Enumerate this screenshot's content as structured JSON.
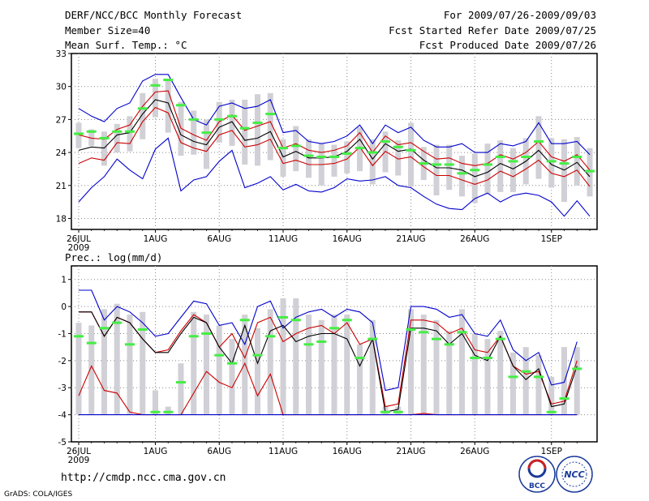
{
  "header": {
    "title": "DERF/NCC/BCC Monthly Forecast",
    "member_size": "Member Size=40",
    "temp_label": "Mean Surf. Temp.: °C",
    "period": "For 2009/07/26-2009/09/03",
    "started": "Fcst Started Refer Date 2009/07/25",
    "produced": "Fcst Produced Date 2009/07/26"
  },
  "footer": {
    "url": "http://cmdp.ncc.cma.gov.cn",
    "grads": "GrADS: COLA/IGES",
    "logo_bcc": "BCC",
    "logo_ncc": "NCC"
  },
  "colors": {
    "blue": "#0000cc",
    "red": "#cc0000",
    "black": "#000000",
    "green": "#44ee44",
    "bar": "#d0d0d6",
    "grid": "#888888"
  },
  "chart_data": [
    {
      "type": "line",
      "title": "Mean Surf. Temp.: °C",
      "xlabel": "",
      "ylabel": "°C",
      "ylim": [
        17,
        33
      ],
      "yticks": [
        "18",
        "21",
        "24",
        "27",
        "30",
        "33"
      ],
      "ytick_values": [
        18,
        21,
        24,
        27,
        30,
        33
      ],
      "xticks": [
        {
          "day": 0,
          "label": "26JUL",
          "sub": "2009"
        },
        {
          "day": 6,
          "label": "1AUG",
          "sub": ""
        },
        {
          "day": 11,
          "label": "6AUG",
          "sub": ""
        },
        {
          "day": 16,
          "label": "11AUG",
          "sub": ""
        },
        {
          "day": 21,
          "label": "16AUG",
          "sub": ""
        },
        {
          "day": 26,
          "label": "21AUG",
          "sub": ""
        },
        {
          "day": 31,
          "label": "26AUG",
          "sub": ""
        },
        {
          "day": 37,
          "label": "1SEP",
          "sub": ""
        }
      ],
      "x_start_day": 0,
      "series": [
        {
          "name": "max",
          "color": "blue",
          "values": [
            28,
            27.3,
            26.8,
            28,
            28.5,
            30.5,
            31.1,
            31.1,
            29,
            27,
            26.5,
            28.2,
            28.5,
            28,
            28.2,
            28.8,
            25.8,
            26,
            25,
            24.8,
            25,
            25.5,
            26.5,
            24.8,
            26.5,
            25.8,
            26.3,
            25.1,
            24.5,
            24.5,
            24.8,
            24,
            24,
            24.8,
            24.6,
            25,
            26.7,
            24.8,
            24.8,
            25,
            23.8
          ]
        },
        {
          "name": "upper",
          "color": "red",
          "values": [
            25.6,
            25.3,
            25.2,
            26.1,
            26.5,
            28.2,
            29.5,
            29.6,
            26.2,
            25.6,
            25.1,
            26.8,
            27.4,
            26,
            26.4,
            26.8,
            24.4,
            24.8,
            24.2,
            24,
            24.2,
            24.6,
            25.8,
            24,
            25.5,
            24.7,
            24.9,
            24.1,
            23.4,
            23.5,
            23,
            22.8,
            23,
            23.8,
            23.4,
            24,
            25,
            23.6,
            23.2,
            23.8,
            22.4
          ]
        },
        {
          "name": "mean",
          "color": "black",
          "values": [
            24.2,
            24.5,
            24.4,
            25.6,
            25.8,
            27.5,
            28.8,
            28.5,
            25.6,
            25,
            24.7,
            26.3,
            26.8,
            25.1,
            25.3,
            25.9,
            23.6,
            24.1,
            23.5,
            23.5,
            23.6,
            24.1,
            25.2,
            23.4,
            24.8,
            24.1,
            24.3,
            23.3,
            22.6,
            22.6,
            22.4,
            21.8,
            22.2,
            23,
            22.5,
            23.2,
            24.2,
            22.9,
            22.4,
            23.1,
            21.8
          ]
        },
        {
          "name": "lower",
          "color": "red",
          "values": [
            23,
            23.5,
            23.3,
            24.9,
            24.8,
            26.8,
            28.1,
            27.6,
            24.9,
            24.4,
            24.1,
            25.6,
            26,
            24.5,
            24.7,
            25.2,
            23,
            23.3,
            22.9,
            22.9,
            23,
            23.4,
            24.5,
            22.8,
            24.1,
            23.4,
            23.6,
            22.7,
            21.9,
            21.9,
            21.5,
            21.1,
            21.5,
            22.3,
            21.8,
            22.5,
            23.3,
            22.1,
            21.8,
            22.4,
            20.9
          ]
        },
        {
          "name": "min",
          "color": "blue",
          "values": [
            19.5,
            20.8,
            21.8,
            23.4,
            22.4,
            21.6,
            24.3,
            25.3,
            20.5,
            21.5,
            21.8,
            23.2,
            24.2,
            20.8,
            21.2,
            21.8,
            20.6,
            21.1,
            20.5,
            20.4,
            20.8,
            21.6,
            21.4,
            21.5,
            21.8,
            21,
            20.8,
            20,
            19.3,
            18.9,
            18.8,
            19.8,
            20.3,
            19.5,
            20.1,
            20.3,
            20.1,
            19.5,
            18.2,
            19.6,
            18.2
          ]
        }
      ],
      "markers": [
        25.7,
        25.9,
        25.3,
        25.9,
        25.9,
        28,
        30.1,
        30.6,
        28.3,
        27,
        25.8,
        27,
        27.3,
        26.2,
        26.7,
        27.5,
        24.4,
        24.6,
        23.7,
        23.6,
        23.6,
        23.9,
        24.4,
        24,
        25,
        24.5,
        24.2,
        23,
        22.9,
        22.9,
        22.1,
        22.4,
        22.9,
        23.6,
        23.2,
        23.6,
        25,
        23.2,
        23,
        23.6,
        22.3
      ],
      "boxes": [
        [
          24.4,
          26.7
        ],
        [
          24.6,
          26.1
        ],
        [
          22.8,
          25.9
        ],
        [
          24,
          26.6
        ],
        [
          24.1,
          27.3
        ],
        [
          25.2,
          29.4
        ],
        [
          27.2,
          30.7
        ],
        [
          25.8,
          30.6
        ],
        [
          23.7,
          28.6
        ],
        [
          23.8,
          27.8
        ],
        [
          22.5,
          27
        ],
        [
          24.9,
          28.6
        ],
        [
          24.6,
          28.8
        ],
        [
          22.9,
          28.8
        ],
        [
          22.8,
          29.3
        ],
        [
          23.3,
          29.4
        ],
        [
          21.8,
          25.2
        ],
        [
          22.3,
          26.4
        ],
        [
          21.7,
          25.2
        ],
        [
          21,
          24.8
        ],
        [
          21.8,
          24.7
        ],
        [
          22.1,
          25
        ],
        [
          22.3,
          26.3
        ],
        [
          21.1,
          25.2
        ],
        [
          22.2,
          25.9
        ],
        [
          21.9,
          25.1
        ],
        [
          20.9,
          26.7
        ],
        [
          21.5,
          24.5
        ],
        [
          20.1,
          24.7
        ],
        [
          20.6,
          24.7
        ],
        [
          20,
          23.7
        ],
        [
          19.4,
          23.9
        ],
        [
          20.2,
          24.8
        ],
        [
          20.4,
          25.1
        ],
        [
          20.4,
          24.4
        ],
        [
          21.1,
          25.3
        ],
        [
          21.6,
          27.3
        ],
        [
          20.8,
          25.3
        ],
        [
          19.5,
          25.2
        ],
        [
          21,
          25.4
        ],
        [
          20,
          24.4
        ]
      ]
    },
    {
      "type": "line",
      "title": "Prec.: log(mm/d)",
      "xlabel": "",
      "ylabel": "log(mm/d)",
      "ylim": [
        -5,
        1.5
      ],
      "yticks": [
        "-5",
        "-4",
        "-3",
        "-2",
        "-1",
        "0",
        "1"
      ],
      "ytick_values": [
        -5,
        -4,
        -3,
        -2,
        -1,
        0,
        1
      ],
      "xticks": [
        {
          "day": 0,
          "label": "26JUL",
          "sub": "2009"
        },
        {
          "day": 6,
          "label": "1AUG",
          "sub": ""
        },
        {
          "day": 11,
          "label": "6AUG",
          "sub": ""
        },
        {
          "day": 16,
          "label": "11AUG",
          "sub": ""
        },
        {
          "day": 21,
          "label": "16AUG",
          "sub": ""
        },
        {
          "day": 26,
          "label": "21AUG",
          "sub": ""
        },
        {
          "day": 31,
          "label": "26AUG",
          "sub": ""
        },
        {
          "day": 37,
          "label": "1SEP",
          "sub": ""
        }
      ],
      "x_start_day": 0,
      "series": [
        {
          "name": "max",
          "color": "blue",
          "values": [
            0.6,
            0.6,
            -0.5,
            0,
            -0.2,
            -0.6,
            -1.1,
            -1,
            -0.4,
            0.2,
            0.1,
            -0.7,
            -0.6,
            -1.4,
            0,
            0.2,
            -0.8,
            -0.4,
            -0.2,
            -0.1,
            -0.4,
            -0.1,
            -0.2,
            -0.6,
            -3.1,
            -3,
            0,
            0,
            -0.1,
            -0.4,
            -0.3,
            -1,
            -1.1,
            -0.5,
            -1.6,
            -2,
            -1.7,
            -2.9,
            -2.8,
            -1.3
          ]
        },
        {
          "name": "upper",
          "color": "red",
          "values": [
            -0.2,
            -0.2,
            -1.1,
            -0.4,
            -0.6,
            -1.2,
            -1.7,
            -1.6,
            -0.9,
            -0.3,
            -0.6,
            -1.5,
            -1,
            -1.9,
            -0.6,
            -0.4,
            -1.3,
            -1,
            -0.8,
            -0.7,
            -1,
            -0.6,
            -1.4,
            -1.2,
            -3.7,
            -3.6,
            -0.5,
            -0.5,
            -0.6,
            -1,
            -0.8,
            -1.6,
            -1.7,
            -1.1,
            -2.2,
            -2.5,
            -2.4,
            -3.6,
            -3.5,
            -2
          ]
        },
        {
          "name": "mean",
          "color": "black",
          "values": [
            -0.2,
            -0.2,
            -1.1,
            -0.4,
            -0.6,
            -1.2,
            -1.7,
            -1.7,
            -1,
            -0.4,
            -0.6,
            -1.5,
            -2.1,
            -0.7,
            -2.1,
            -0.9,
            -0.7,
            -1.3,
            -1.1,
            -1,
            -1,
            -1.2,
            -2.2,
            -1.2,
            -3.9,
            -3.8,
            -0.8,
            -0.8,
            -0.9,
            -1.4,
            -1,
            -1.8,
            -2,
            -1.1,
            -2.2,
            -2.7,
            -2.3,
            -3.7,
            -3.6,
            -2.2
          ]
        },
        {
          "name": "lower",
          "color": "red",
          "values": [
            -3.3,
            -2.2,
            -3.1,
            -3.2,
            -3.9,
            -4,
            -4,
            -4,
            -4,
            -3.2,
            -2.4,
            -2.8,
            -3,
            -2.1,
            -3.3,
            -2.5,
            -4,
            -4,
            -4,
            -4,
            -4,
            -4,
            -4,
            -4,
            -4,
            -4,
            -4,
            -3.95,
            -4,
            -4,
            -4,
            -4,
            -4,
            -4,
            -4,
            -4,
            -4,
            -4,
            -4,
            -4
          ]
        },
        {
          "name": "min",
          "color": "blue",
          "values": [
            -4,
            -4,
            -4,
            -4,
            -4,
            -4,
            -4,
            -4,
            -4,
            -4,
            -4,
            -4,
            -4,
            -4,
            -4,
            -4,
            -4,
            -4,
            -4,
            -4,
            -4,
            -4,
            -4,
            -4,
            -4,
            -4,
            -4,
            -4,
            -4,
            -4,
            -4,
            -4,
            -4,
            -4,
            -4,
            -4,
            -4,
            -4,
            -4,
            -4
          ]
        }
      ],
      "markers": [
        -1.1,
        -1.35,
        -0.8,
        -0.6,
        -1.4,
        -0.85,
        -3.9,
        -3.9,
        -2.8,
        -1.1,
        -1,
        -1.8,
        -2.1,
        -0.5,
        -1.8,
        -1.1,
        -0.4,
        -0.5,
        -1.4,
        -1.3,
        -0.8,
        -0.5,
        -1.9,
        -1.2,
        -3.9,
        -3.9,
        -0.85,
        -0.95,
        -1.2,
        -1.4,
        -0.95,
        -1.9,
        -1.9,
        -1.2,
        -2.6,
        -2.4,
        -2.6,
        -3.9,
        -3.4,
        -2.3
      ],
      "boxes": [
        [
          -4,
          -0.6
        ],
        [
          -4,
          -0.7
        ],
        [
          -4,
          -0.1
        ],
        [
          -4,
          0.1
        ],
        [
          -4,
          -0.3
        ],
        [
          -4,
          -0.2
        ],
        [
          -4,
          -3.1
        ],
        [
          -4,
          -3.7
        ],
        [
          -4,
          -2.1
        ],
        [
          -4,
          -0.2
        ],
        [
          -4,
          -0.3
        ],
        [
          -4,
          -0.7
        ],
        [
          -4,
          -1.2
        ],
        [
          -4,
          -0.3
        ],
        [
          -4,
          -0.8
        ],
        [
          -4,
          -0.1
        ],
        [
          -4,
          0.3
        ],
        [
          -4,
          0.3
        ],
        [
          -4,
          -0.3
        ],
        [
          -4,
          -0.5
        ],
        [
          -4,
          -0.3
        ],
        [
          -4,
          -0.3
        ],
        [
          -4,
          -1.4
        ],
        [
          -4,
          -0.5
        ],
        [
          -4,
          -3.7
        ],
        [
          -4,
          -3.7
        ],
        [
          -4,
          -0.1
        ],
        [
          -4,
          -0.3
        ],
        [
          -4,
          -0.5
        ],
        [
          -4,
          -0.9
        ],
        [
          -4,
          -0.1
        ],
        [
          -4,
          -1
        ],
        [
          -4,
          -1.2
        ],
        [
          -4,
          -0.9
        ],
        [
          -4,
          -1.7
        ],
        [
          -4,
          -1.5
        ],
        [
          -4,
          -1.8
        ],
        [
          -4,
          -2.6
        ],
        [
          -4,
          -1.5
        ],
        [
          -4,
          -1.5
        ]
      ]
    }
  ]
}
